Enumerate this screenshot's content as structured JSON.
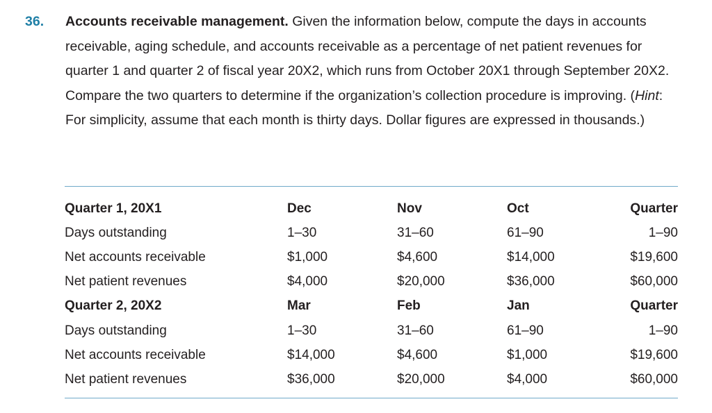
{
  "problem": {
    "number": "36.",
    "title": "Accounts receivable management.",
    "text_before_hint": " Given the information below, compute the days in accounts receivable, aging schedule, and accounts receivable as a percentage of net patient revenues for quarter 1 and quarter 2 of fiscal year 20X2, which runs from October 20X1 through September 20X2. Compare the two quarters to determine if the organiza­tion’s collection procedure is improving. (",
    "hint_label": "Hint",
    "hint_text": ": For simplicity, assume that each month is thirty days. Dollar figures are expressed in thousands.)"
  },
  "table": {
    "rows": [
      {
        "type": "head",
        "cells": [
          "Quarter 1, 20X1",
          "Dec",
          "Nov",
          "Oct",
          "Quarter"
        ]
      },
      {
        "type": "body",
        "cells": [
          "Days outstanding",
          "1–30",
          "31–60",
          "61–90",
          "1–90"
        ]
      },
      {
        "type": "body",
        "cells": [
          "Net accounts receivable",
          "$1,000",
          "$4,600",
          "$14,000",
          "$19,600"
        ]
      },
      {
        "type": "body",
        "cells": [
          "Net patient revenues",
          "$4,000",
          "$20,000",
          "$36,000",
          "$60,000"
        ]
      },
      {
        "type": "head",
        "cells": [
          "Quarter 2, 20X2",
          "Mar",
          "Feb",
          "Jan",
          "Quarter"
        ]
      },
      {
        "type": "body",
        "cells": [
          "Days outstanding",
          "1–30",
          "31–60",
          "61–90",
          "1–90"
        ]
      },
      {
        "type": "body",
        "cells": [
          "Net accounts receivable",
          "$14,000",
          "$4,600",
          "$1,000",
          "$19,600"
        ]
      },
      {
        "type": "body",
        "cells": [
          "Net patient revenues",
          "$36,000",
          "$20,000",
          "$4,000",
          "$60,000"
        ]
      }
    ]
  },
  "colors": {
    "number": "#1f7fa6",
    "rule": "#6fa9c9",
    "text": "#231f20"
  }
}
